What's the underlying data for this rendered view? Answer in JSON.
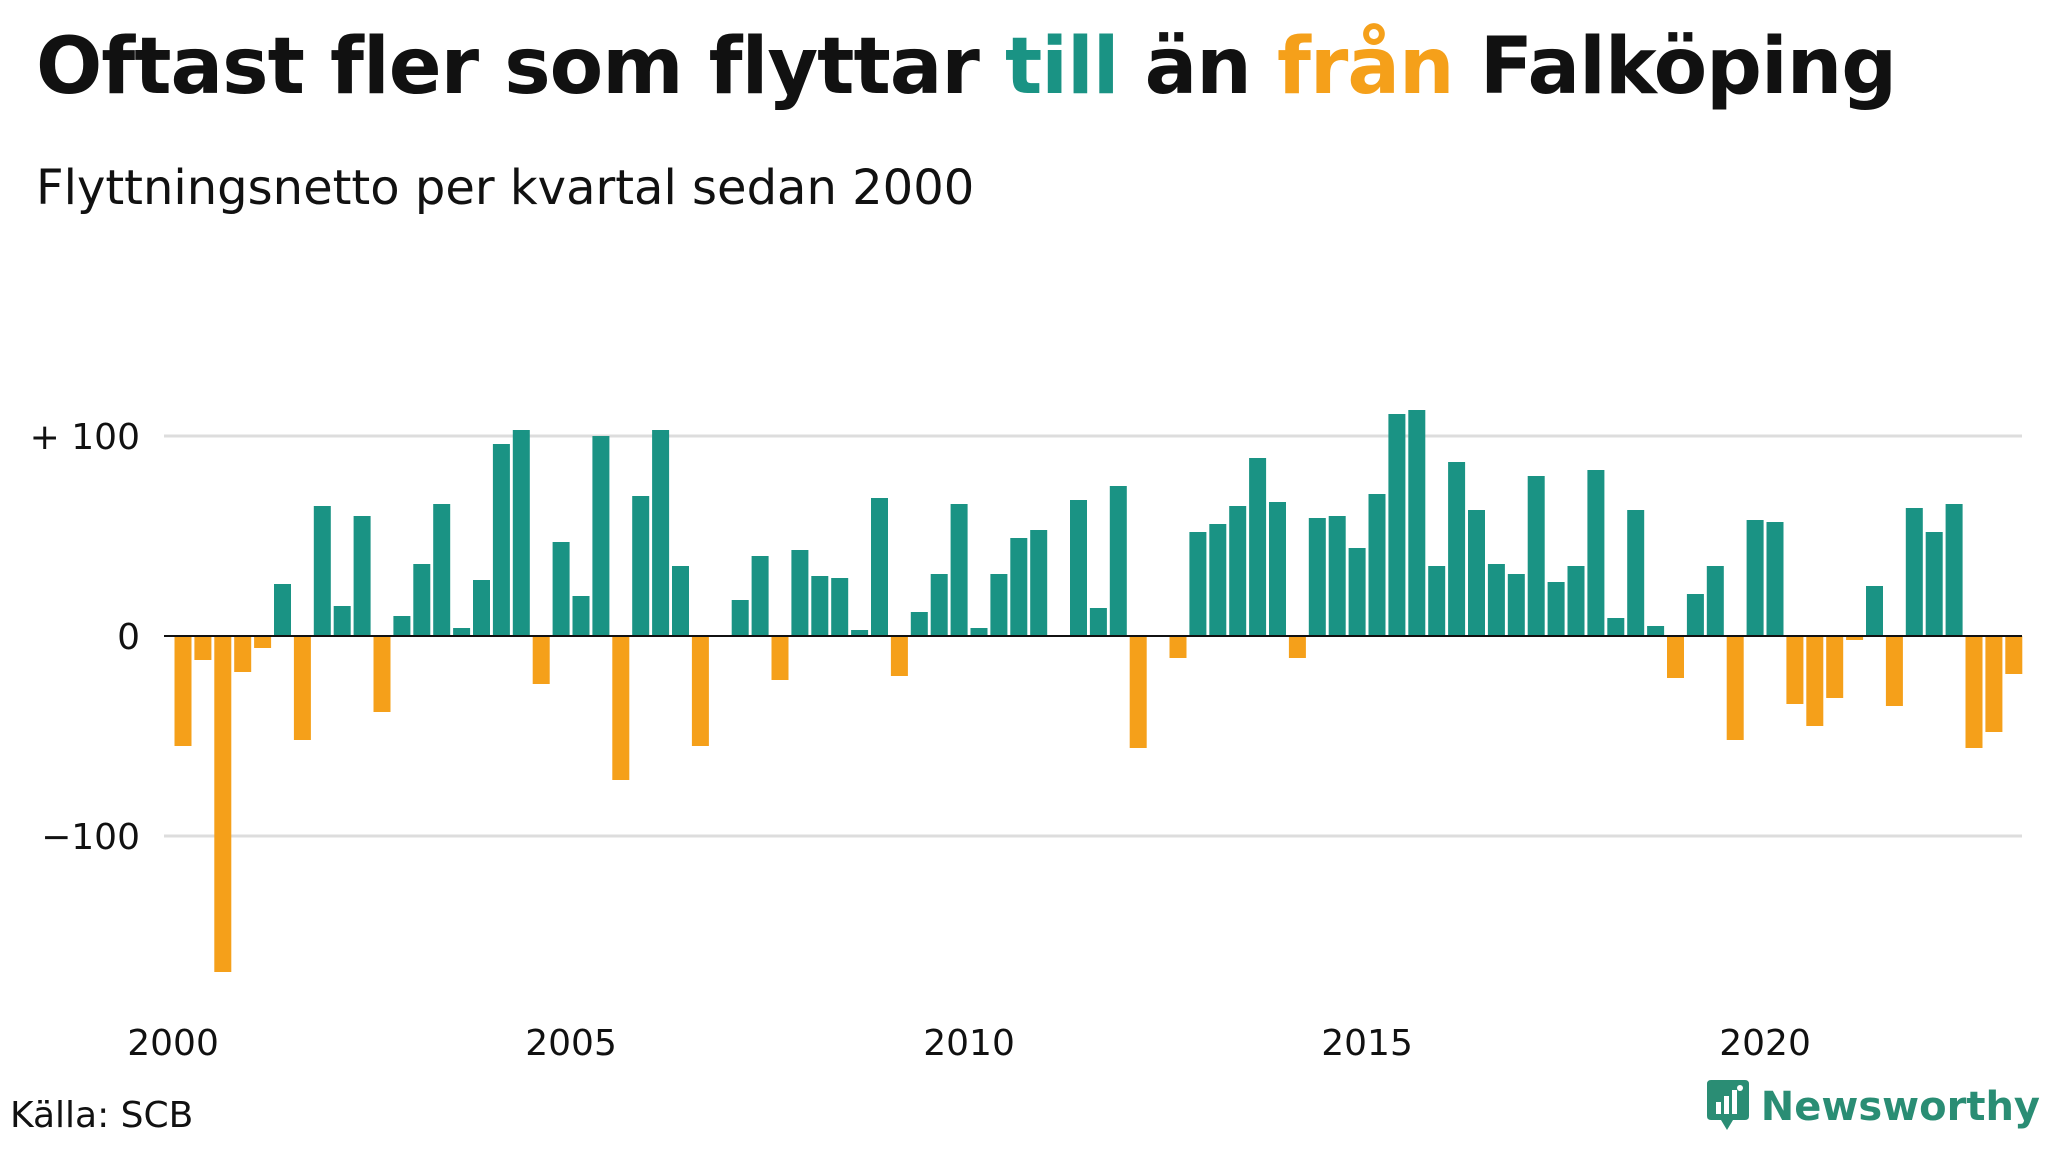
{
  "title": {
    "part1": "Oftast fler som flyttar ",
    "till": "till",
    "part2": " än ",
    "fran": "från",
    "part3": " Falköping"
  },
  "subtitle": "Flyttningsnetto per kvartal sedan 2000",
  "source": "Källa: SCB",
  "brand": "Newsworthy",
  "colors": {
    "positive": "#1a9384",
    "negative": "#f5a01a",
    "grid": "#dddddd",
    "brand": "#2a8d74"
  },
  "chart_data": {
    "type": "bar",
    "title": "Oftast fler som flyttar till än från Falköping",
    "subtitle": "Flyttningsnetto per kvartal sedan 2000",
    "xlabel": "",
    "ylabel": "",
    "start_year": 2000,
    "periods_per_year": 4,
    "ylim": [
      -170,
      120
    ],
    "y_ticks": [
      100,
      0,
      -100
    ],
    "y_tick_labels": [
      "+ 100",
      "0",
      "−100"
    ],
    "x_ticks": [
      2000,
      2005,
      2010,
      2015,
      2020
    ],
    "x_tick_labels": [
      "2000",
      "2005",
      "2010",
      "2015",
      "2020"
    ],
    "grid": true,
    "values": [
      -55,
      -12,
      -168,
      -18,
      -6,
      26,
      -52,
      65,
      15,
      60,
      -38,
      10,
      36,
      66,
      4,
      28,
      96,
      103,
      -24,
      47,
      20,
      100,
      -72,
      70,
      103,
      35,
      -55,
      0,
      18,
      40,
      -22,
      43,
      30,
      29,
      3,
      69,
      -20,
      12,
      31,
      66,
      4,
      31,
      49,
      53,
      0,
      68,
      14,
      75,
      -56,
      0,
      -11,
      52,
      56,
      65,
      89,
      67,
      -11,
      59,
      60,
      44,
      71,
      111,
      113,
      35,
      87,
      63,
      36,
      31,
      80,
      27,
      35,
      83,
      9,
      63,
      5,
      -21,
      21,
      35,
      -52,
      58,
      57,
      -34,
      -45,
      -31,
      -2,
      25,
      -35,
      64,
      52,
      66,
      -56,
      -48,
      -19
    ]
  }
}
